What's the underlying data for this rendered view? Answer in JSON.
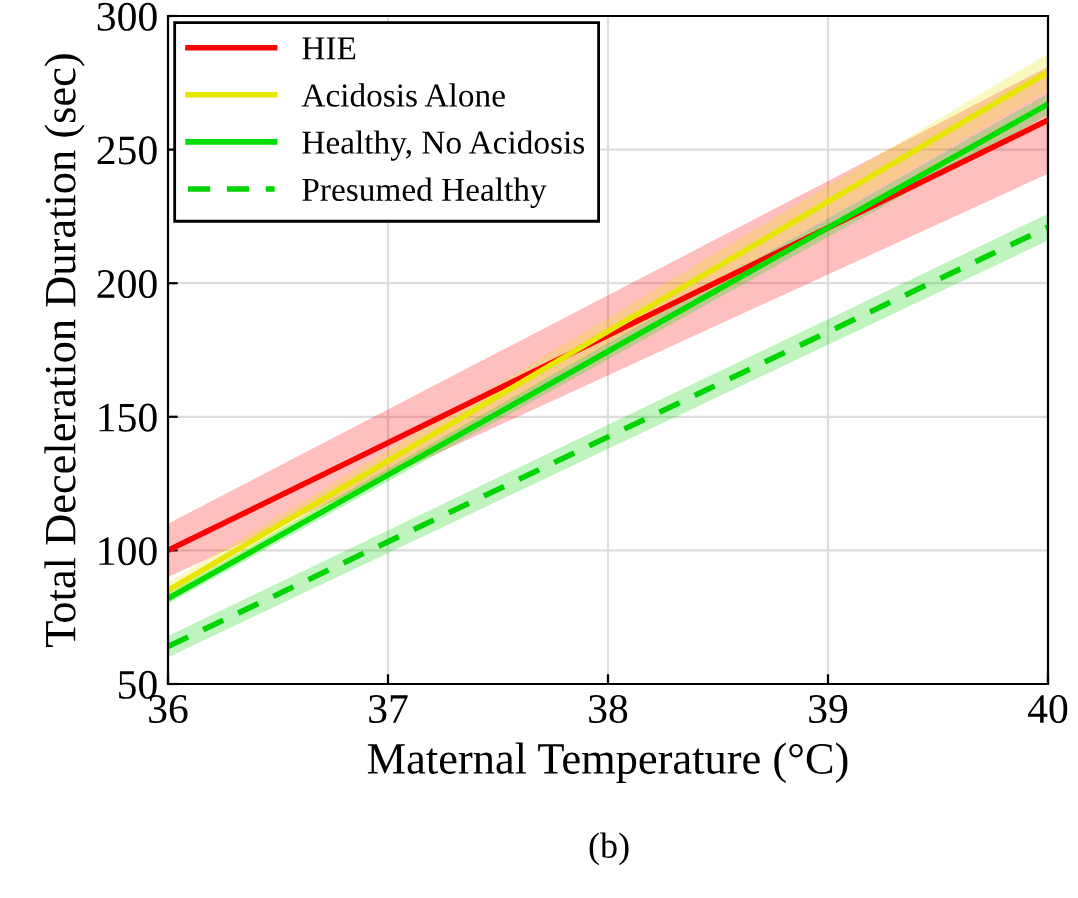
{
  "chart_data": {
    "type": "line",
    "xlabel": "Maternal Temperature (°C)",
    "ylabel": "Total Deceleration Duration (sec)",
    "x": [
      36,
      40
    ],
    "series": [
      {
        "name": "HIE",
        "color": "#ff0000",
        "values": [
          100,
          261
        ],
        "lower": [
          90,
          241
        ],
        "upper": [
          110,
          281
        ],
        "line_style": "solid"
      },
      {
        "name": "Acidosis Alone",
        "color": "#e6e600",
        "values": [
          85,
          279
        ],
        "lower": [
          82,
          272
        ],
        "upper": [
          88,
          286
        ],
        "line_style": "solid"
      },
      {
        "name": "Healthy, No Acidosis",
        "color": "#00dd00",
        "values": [
          82,
          267
        ],
        "lower": [
          80,
          263
        ],
        "upper": [
          84,
          271
        ],
        "line_style": "solid"
      },
      {
        "name": "Presumed Healthy",
        "color": "#00d400",
        "values": [
          64,
          221
        ],
        "lower": [
          60,
          216
        ],
        "upper": [
          68,
          226
        ],
        "line_style": "dashed"
      }
    ],
    "xlim": [
      36,
      40
    ],
    "ylim": [
      50,
      300
    ],
    "xticks": [
      36,
      37,
      38,
      39,
      40
    ],
    "yticks": [
      50,
      100,
      150,
      200,
      250,
      300
    ],
    "grid": true,
    "legend": "top left",
    "annotations": [
      "(b)"
    ]
  }
}
